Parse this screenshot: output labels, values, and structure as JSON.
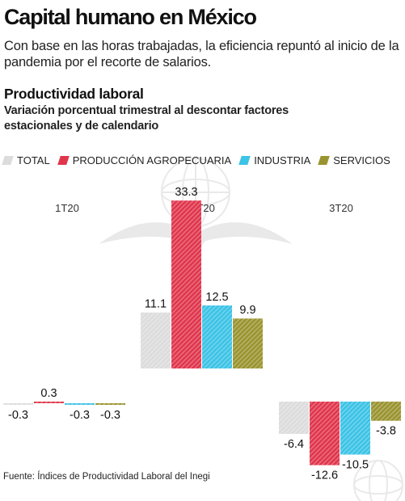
{
  "header": {
    "title": "Capital humano en México",
    "subtitle": "Con base en las horas trabajadas, la eficiencia repuntó al inicio de la pandemia por el recorte de salarios.",
    "section": "Productividad laboral",
    "description": "Variación porcentual trimestral al descontar factores estacionales y de calendario"
  },
  "footer": {
    "source": "Fuente: Índices de Productividad Laboral del Inegi"
  },
  "colors": {
    "total": "#dcdcdc",
    "produccion_agropecuaria": "#e0364d",
    "industria": "#3cc3e6",
    "servicios": "#9a9430"
  },
  "chart_data": {
    "type": "bar",
    "categories": [
      "1T20",
      "2T20",
      "3T20"
    ],
    "series": [
      {
        "name": "TOTAL",
        "values": [
          -0.3,
          11.1,
          -6.4
        ]
      },
      {
        "name": "PRODUCCIÓN AGROPECUARIA",
        "values": [
          0.3,
          33.3,
          -12.6
        ]
      },
      {
        "name": "INDUSTRIA",
        "values": [
          -0.3,
          12.5,
          -10.5
        ]
      },
      {
        "name": "SERVICIOS",
        "values": [
          -0.3,
          9.9,
          -3.8
        ]
      }
    ],
    "legend_position": "top-left",
    "grid": false,
    "ylim": [
      -13,
      34
    ]
  }
}
